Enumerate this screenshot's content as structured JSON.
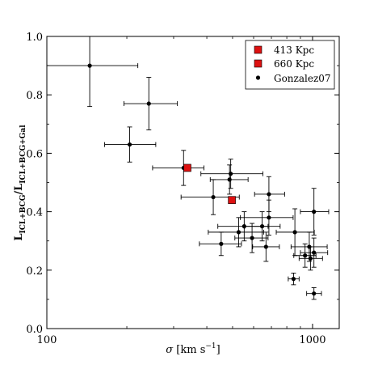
{
  "chart_data": {
    "type": "scatter",
    "xlabel_symbol": "σ",
    "xlabel_unit": "[km s",
    "xlabel_exp": "−1",
    "xlabel_close": "]",
    "ylabel_num": "L",
    "ylabel_num_sub": "ICL+BCG",
    "ylabel_den": "/L",
    "ylabel_den_sub": "ICL+BCG+Gal",
    "xscale": "log",
    "xlim": [
      100,
      1260
    ],
    "ylim": [
      0.0,
      1.0
    ],
    "xticks": [
      100,
      1000
    ],
    "xtick_labels": [
      "100",
      "1000"
    ],
    "yticks": [
      0.0,
      0.2,
      0.4,
      0.6,
      0.8,
      1.0
    ],
    "ytick_labels": [
      "0.0",
      "0.2",
      "0.4",
      "0.6",
      "0.8",
      "1.0"
    ],
    "grid": false,
    "legend_position": "top-right",
    "series": [
      {
        "name": "413 Kpc",
        "marker": "square",
        "color": "#dd1111",
        "points": [
          {
            "x": 338,
            "y": 0.55,
            "xerr": [
              0,
              0
            ],
            "yerr": [
              0,
              0
            ]
          }
        ]
      },
      {
        "name": "660 Kpc",
        "marker": "square",
        "color": "#dd1111",
        "points": [
          {
            "x": 497,
            "y": 0.44,
            "xerr": [
              0,
              0
            ],
            "yerr": [
              0,
              0
            ]
          }
        ]
      },
      {
        "name": "Gonzalez07",
        "marker": "circle",
        "color": "#000000",
        "points": [
          {
            "x": 145,
            "y": 0.9,
            "xerr": [
              45,
              75
            ],
            "yerr": [
              0.14,
              0.1
            ]
          },
          {
            "x": 242,
            "y": 0.77,
            "xerr": [
              47,
              68
            ],
            "yerr": [
              0.09,
              0.09
            ]
          },
          {
            "x": 205,
            "y": 0.63,
            "xerr": [
              40,
              52
            ],
            "yerr": [
              0.06,
              0.06
            ]
          },
          {
            "x": 327,
            "y": 0.55,
            "xerr": [
              77,
              63
            ],
            "yerr": [
              0.06,
              0.06
            ]
          },
          {
            "x": 492,
            "y": 0.53,
            "xerr": [
              112,
              158
            ],
            "yerr": [
              0.05,
              0.05
            ]
          },
          {
            "x": 487,
            "y": 0.51,
            "xerr": [
              75,
              85
            ],
            "yerr": [
              0.05,
              0.05
            ]
          },
          {
            "x": 423,
            "y": 0.45,
            "xerr": [
              103,
              107
            ],
            "yerr": [
              0.06,
              0.06
            ]
          },
          {
            "x": 685,
            "y": 0.46,
            "xerr": [
              80,
              100
            ],
            "yerr": [
              0.06,
              0.06
            ]
          },
          {
            "x": 1012,
            "y": 0.4,
            "xerr": [
              112,
              138
            ],
            "yerr": [
              0.08,
              0.08
            ]
          },
          {
            "x": 685,
            "y": 0.38,
            "xerr": [
              150,
              160
            ],
            "yerr": [
              0.06,
              0.06
            ]
          },
          {
            "x": 553,
            "y": 0.35,
            "xerr": [
              113,
              127
            ],
            "yerr": [
              0.05,
              0.05
            ]
          },
          {
            "x": 646,
            "y": 0.35,
            "xerr": [
              91,
              109
            ],
            "yerr": [
              0.05,
              0.05
            ]
          },
          {
            "x": 527,
            "y": 0.33,
            "xerr": [
              122,
              128
            ],
            "yerr": [
              0.05,
              0.05
            ]
          },
          {
            "x": 858,
            "y": 0.33,
            "xerr": [
              128,
              157
            ],
            "yerr": [
              0.08,
              0.08
            ]
          },
          {
            "x": 592,
            "y": 0.31,
            "xerr": [
              82,
              88
            ],
            "yerr": [
              0.05,
              0.05
            ]
          },
          {
            "x": 453,
            "y": 0.29,
            "xerr": [
              78,
              87
            ],
            "yerr": [
              0.04,
              0.04
            ]
          },
          {
            "x": 668,
            "y": 0.28,
            "xerr": [
              73,
              82
            ],
            "yerr": [
              0.05,
              0.05
            ]
          },
          {
            "x": 972,
            "y": 0.28,
            "xerr": [
              142,
              163
            ],
            "yerr": [
              0.05,
              0.05
            ]
          },
          {
            "x": 1012,
            "y": 0.26,
            "xerr": [
              112,
              128
            ],
            "yerr": [
              0.05,
              0.05
            ]
          },
          {
            "x": 937,
            "y": 0.25,
            "xerr": [
              87,
              93
            ],
            "yerr": [
              0.04,
              0.04
            ]
          },
          {
            "x": 982,
            "y": 0.24,
            "xerr": [
              92,
              108
            ],
            "yerr": [
              0.04,
              0.04
            ]
          },
          {
            "x": 848,
            "y": 0.17,
            "xerr": [
              38,
              42
            ],
            "yerr": [
              0.02,
              0.02
            ]
          },
          {
            "x": 1012,
            "y": 0.12,
            "xerr": [
              62,
              68
            ],
            "yerr": [
              0.02,
              0.02
            ]
          }
        ]
      }
    ]
  }
}
